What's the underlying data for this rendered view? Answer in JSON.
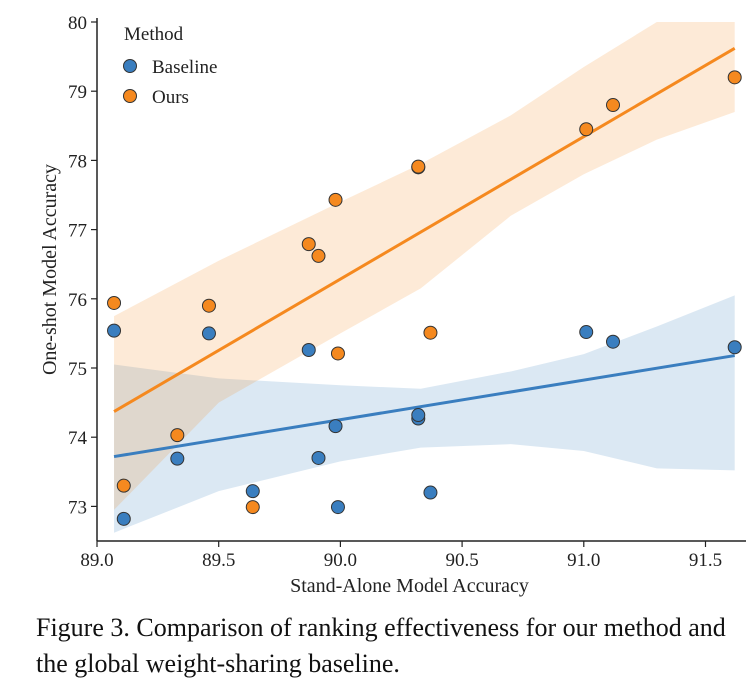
{
  "chart_data": {
    "type": "scatter",
    "xlabel": "Stand-Alone Model Accuracy",
    "ylabel": "One-shot Model Accuracy",
    "xlim": [
      89.0,
      91.65
    ],
    "ylim": [
      72.5,
      80.0
    ],
    "xticks": [
      "89.0",
      "89.5",
      "90.0",
      "90.5",
      "91.0",
      "91.5"
    ],
    "yticks": [
      "73",
      "74",
      "75",
      "76",
      "77",
      "78",
      "79",
      "80"
    ],
    "grid": false,
    "legend": {
      "title": "Method",
      "placement": "top-left"
    },
    "series": [
      {
        "name": "Baseline",
        "color": "#3a7ebf",
        "x": [
          89.07,
          89.11,
          89.33,
          89.46,
          89.64,
          89.87,
          89.91,
          89.98,
          89.99,
          90.32,
          90.32,
          90.37,
          91.01,
          91.12,
          91.62
        ],
        "y": [
          75.54,
          72.82,
          73.69,
          75.5,
          73.22,
          75.26,
          73.7,
          74.16,
          72.99,
          74.27,
          74.32,
          73.2,
          75.52,
          75.38,
          75.3
        ],
        "trend": [
          [
            89.07,
            73.72
          ],
          [
            91.62,
            75.18
          ]
        ],
        "band_upper": [
          [
            89.07,
            75.05
          ],
          [
            89.5,
            74.85
          ],
          [
            90.0,
            74.75
          ],
          [
            90.33,
            74.7
          ],
          [
            90.7,
            74.95
          ],
          [
            91.0,
            75.2
          ],
          [
            91.3,
            75.6
          ],
          [
            91.62,
            76.05
          ]
        ],
        "band_lower": [
          [
            89.07,
            72.62
          ],
          [
            89.5,
            73.22
          ],
          [
            90.0,
            73.65
          ],
          [
            90.33,
            73.85
          ],
          [
            90.7,
            73.9
          ],
          [
            91.0,
            73.8
          ],
          [
            91.3,
            73.55
          ],
          [
            91.62,
            73.52
          ]
        ]
      },
      {
        "name": "Ours",
        "color": "#f5891f",
        "x": [
          89.07,
          89.11,
          89.33,
          89.46,
          89.64,
          89.87,
          89.91,
          89.98,
          89.99,
          90.32,
          90.32,
          90.37,
          91.01,
          91.12,
          91.62
        ],
        "y": [
          75.94,
          73.3,
          74.03,
          75.9,
          72.99,
          76.79,
          76.62,
          77.43,
          75.21,
          77.9,
          77.91,
          75.51,
          78.45,
          78.8,
          79.2
        ],
        "trend": [
          [
            89.07,
            74.37
          ],
          [
            91.62,
            79.62
          ]
        ],
        "band_upper": [
          [
            89.07,
            75.75
          ],
          [
            89.5,
            76.55
          ],
          [
            90.0,
            77.4
          ],
          [
            90.33,
            77.95
          ],
          [
            90.7,
            78.65
          ],
          [
            91.0,
            79.35
          ],
          [
            91.3,
            80.0
          ],
          [
            91.62,
            80.0
          ]
        ],
        "band_lower": [
          [
            89.07,
            72.95
          ],
          [
            89.5,
            74.5
          ],
          [
            90.0,
            75.5
          ],
          [
            90.33,
            76.15
          ],
          [
            90.7,
            77.2
          ],
          [
            91.0,
            77.8
          ],
          [
            91.3,
            78.3
          ],
          [
            91.62,
            78.7
          ]
        ]
      }
    ]
  },
  "caption": "Figure 3. Comparison of ranking effectiveness for our method and the global weight-sharing baseline."
}
